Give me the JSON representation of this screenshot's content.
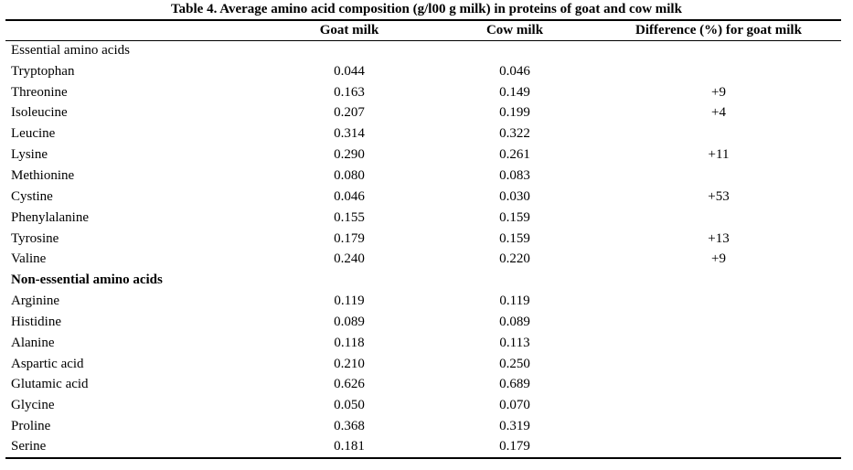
{
  "caption": "Table 4. Average amino acid composition (g/l00 g milk) in proteins of goat and cow milk",
  "columns": [
    "",
    "Goat milk",
    "Cow milk",
    "Difference (%) for goat milk"
  ],
  "rows": [
    {
      "name": "Essential amino acids",
      "goat": "",
      "cow": "",
      "diff": ""
    },
    {
      "name": "Tryptophan",
      "goat": "0.044",
      "cow": "0.046",
      "diff": ""
    },
    {
      "name": "Threonine",
      "goat": "0.163",
      "cow": "0.149",
      "diff": "+9"
    },
    {
      "name": "Isoleucine",
      "goat": "0.207",
      "cow": "0.199",
      "diff": "+4"
    },
    {
      "name": "Leucine",
      "goat": "0.314",
      "cow": "0.322",
      "diff": ""
    },
    {
      "name": "Lysine",
      "goat": "0.290",
      "cow": "0.261",
      "diff": "+11"
    },
    {
      "name": "Methionine",
      "goat": "0.080",
      "cow": "0.083",
      "diff": ""
    },
    {
      "name": "Cystine",
      "goat": "0.046",
      "cow": "0.030",
      "diff": "+53"
    },
    {
      "name": "Phenylalanine",
      "goat": "0.155",
      "cow": "0.159",
      "diff": ""
    },
    {
      "name": "Tyrosine",
      "goat": "0.179",
      "cow": "0.159",
      "diff": "+13"
    },
    {
      "name": "Valine",
      "goat": "0.240",
      "cow": "0.220",
      "diff": "+9"
    },
    {
      "name": "Non-essential amino acids",
      "goat": "",
      "cow": "",
      "diff": ""
    },
    {
      "name": "Arginine",
      "goat": "0.119",
      "cow": "0.119",
      "diff": ""
    },
    {
      "name": "Histidine",
      "goat": "0.089",
      "cow": "0.089",
      "diff": ""
    },
    {
      "name": "Alanine",
      "goat": "0.118",
      "cow": "0.113",
      "diff": ""
    },
    {
      "name": "Aspartic acid",
      "goat": "0.210",
      "cow": "0.250",
      "diff": ""
    },
    {
      "name": "Glutamic acid",
      "goat": "0.626",
      "cow": "0.689",
      "diff": ""
    },
    {
      "name": "Glycine",
      "goat": "0.050",
      "cow": "0.070",
      "diff": ""
    },
    {
      "name": "Proline",
      "goat": "0.368",
      "cow": "0.319",
      "diff": ""
    },
    {
      "name": "Serine",
      "goat": "0.181",
      "cow": "0.179",
      "diff": ""
    }
  ]
}
